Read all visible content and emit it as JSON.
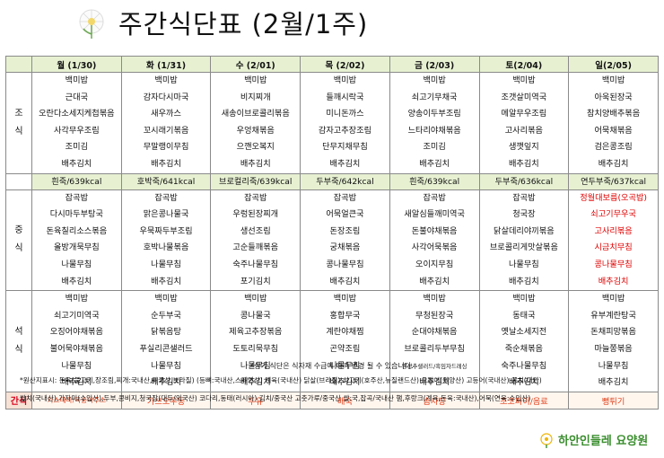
{
  "title": "주간식단표 (2월/1주)",
  "colors": {
    "header_green": "#e7f1d2",
    "snack_red": "#e00000",
    "logo_green": "#3a8e2e"
  },
  "days": [
    "월 (1/30)",
    "화 (1/31)",
    "수 (2/01)",
    "목 (2/02)",
    "금 (2/03)",
    "토(2/04)",
    "일(2/05)"
  ],
  "meals": {
    "breakfast_label": "조\n식",
    "lunch_label": "중\n식",
    "dinner_label": "석\n식",
    "snack_label": "간식"
  },
  "breakfast": [
    [
      "백미밥",
      "근대국",
      "오란다소세지케첩볶음",
      "사각무우조림",
      "조미김",
      "배추김치"
    ],
    [
      "백미밥",
      "감자다시마국",
      "새우까스",
      "꼬시래기볶음",
      "무말랭이무침",
      "배추김치"
    ],
    [
      "백미밥",
      "비지찌개",
      "새송이브로콜리볶음",
      "우엉채볶음",
      "으깬오복지",
      "배추김치"
    ],
    [
      "백미밥",
      "들깨시락국",
      "미니돈까스",
      "감자고추장조림",
      "단무지채무침",
      "배추김치"
    ],
    [
      "백미밥",
      "쇠고기무채국",
      "양송이두부조림",
      "느타리야채볶음",
      "조미김",
      "배추김치"
    ],
    [
      "백미밥",
      "조갯살미역국",
      "메알무우조림",
      "고사리볶음",
      "생깻잎지",
      "배추김치"
    ],
    [
      "백미밥",
      "아욱된장국",
      "참치양배추볶음",
      "어묵채볶음",
      "검은콩조림",
      "배추김치"
    ]
  ],
  "porridge": [
    "흰죽/639kcal",
    "호박죽/641kcal",
    "브로컬리죽/639kcal",
    "두부죽/642kcal",
    "흰죽/639kcal",
    "두부죽/636kcal",
    "연두부죽/637kcal"
  ],
  "lunch": [
    [
      "잡곡밥",
      "다시마두부탕국",
      "돈육칠리소스볶음",
      "올방개묵무침",
      "나물무침",
      "배추김치"
    ],
    [
      "잡곡밥",
      "맑은콩나물국",
      "우묵짜두부조림",
      "호박나물볶음",
      "나물무침",
      "배추김치"
    ],
    [
      "잡곡밥",
      "우렁된장찌개",
      "생선조림",
      "고순들깨볶음",
      "숙주나물무침",
      "포기김치"
    ],
    [
      "잡곡밥",
      "어묵얼큰국",
      "돈장조림",
      "궁채볶음",
      "콩나물무침",
      "배추김치"
    ],
    [
      "잡곡밥",
      "새알심들깨미역국",
      "돈불야채볶음",
      "사각어묵볶음",
      "오이지무침",
      "배추김치"
    ],
    [
      "잡곡밥",
      "청국장",
      "닭살데리야끼볶음",
      "브로콜리게맛살볶음",
      "나물무침",
      "배추김치"
    ],
    [
      "정월대보름(오곡밥)",
      "쇠고기무우국",
      "고사리볶음",
      "시금치무침",
      "콩나물무침",
      "배추김치"
    ]
  ],
  "dinner": [
    [
      "백미밥",
      "쇠고기미역국",
      "오징어야채볶음",
      "불어묵야채볶음",
      "나물무침",
      "배추김치"
    ],
    [
      "백미밥",
      "순두부국",
      "닭볶음탕",
      "푸실리콘샐러드",
      "나물무침",
      "배추김치"
    ],
    [
      "백미밥",
      "콩나물국",
      "제육고추장볶음",
      "도토리묵무침",
      "나물무침",
      "배추김치"
    ],
    [
      "백미밥",
      "홍합무국",
      "계란야채찜",
      "곤약조림",
      "나물무침",
      "배추김치"
    ],
    [
      "백미밥",
      "무청된장국",
      "순대야채볶음",
      "브로콜리두부무침",
      "양상추샐러드/흑임자드레싱",
      "배추김치"
    ],
    [
      "백미밥",
      "동태국",
      "옛날소세지전",
      "죽순채볶음",
      "숙주나물무침",
      "배추김치"
    ],
    [
      "백미밥",
      "유부계란탕국",
      "돈채피망볶음",
      "마늘쫑볶음",
      "나물무침",
      "배추김치"
    ]
  ],
  "lunch_red_day": 6,
  "snack": [
    "카스테라/복숭아주스",
    "가쓰오우동",
    "두유",
    "배숙",
    "솜사탕",
    "초코파이/음료",
    "뻥튀기"
  ],
  "notes": {
    "change_notice": "*상기 식단은 식자재 수급에 따라 변경 될 수 있습니다.",
    "origin_line1": "*원산지표시: 돈육(불고기,장조림,찌개:국내산,미국산,브라질) (등뼈:국내산,스페인산) 계육(국내산) 닭살(브라질) 쇠고기(호주산,뉴질랜드산) 오징어(원양산) 고등어(국내산) 꽁치(대만)",
    "origin_line2": "쌀치(국내산),가자미(수입산),두부,콩비지,청국장(대두/외국산) 코다리,동태(러시아) 김치/중국산 고춧가루/중국산 쌀:국,잡곡/국내산 햄,후랑크(계육,돈육:국내산),어묵(연육:수입산)"
  },
  "logo": {
    "text": "하안인들레 요양원",
    "icon": "dandelion-icon"
  },
  "title_icon": "dandelion-icon"
}
